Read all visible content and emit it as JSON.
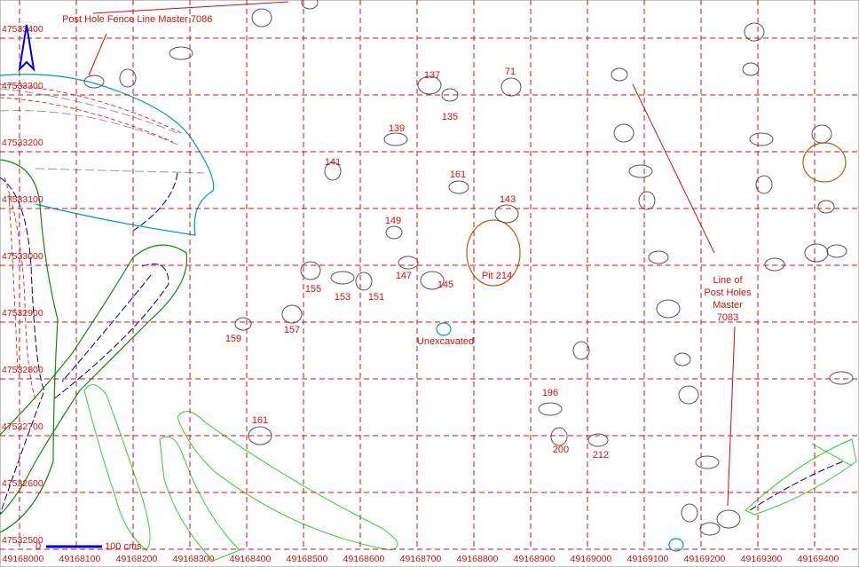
{
  "plan": {
    "annotations": {
      "fence_line": "Post Hole Fence Line Master 7086",
      "post_holes": [
        "Line of",
        "Post Holes",
        "Master",
        "7083"
      ],
      "scale_zero": "0",
      "scale_end": "100 cms"
    },
    "grid": {
      "x_labels": [
        "49168000",
        "49168100",
        "49168200",
        "49168300",
        "49168400",
        "49168500",
        "49168600",
        "49168700",
        "49168800",
        "49168900",
        "49169000",
        "49169100",
        "49169200",
        "49169300",
        "49169400"
      ],
      "y_labels": [
        "47533400",
        "47533300",
        "47533200",
        "47533100",
        "47533000",
        "47532900",
        "47532800",
        "47532700",
        "47532600",
        "47532500"
      ]
    },
    "features": [
      "137",
      "71",
      "135",
      "139",
      "141",
      "161",
      "143",
      "149",
      "155",
      "153",
      "151",
      "147",
      "145",
      "Pit 214",
      "159",
      "157",
      "Unexcavated",
      "196",
      "200",
      "212",
      "161"
    ]
  }
}
